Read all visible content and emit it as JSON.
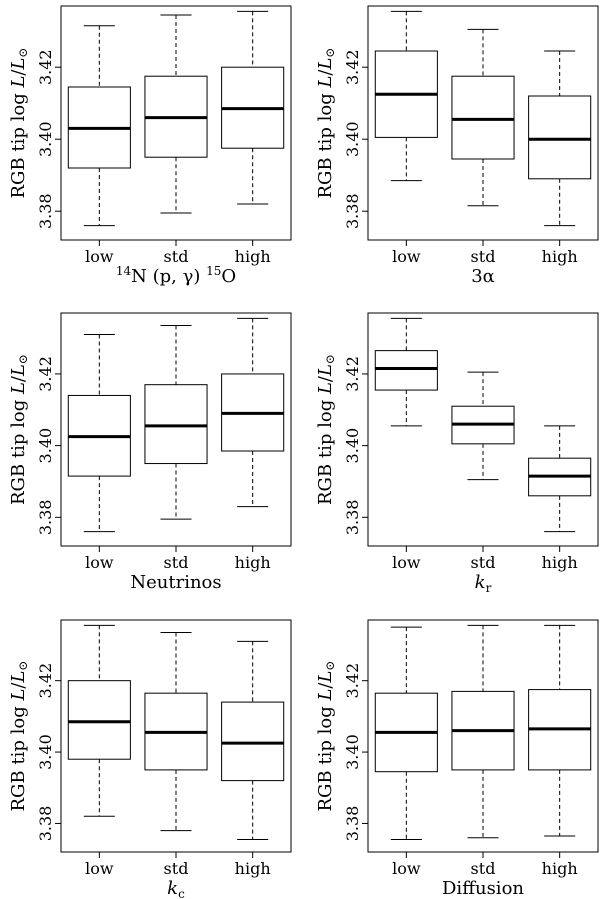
{
  "figure": {
    "y_axis_label": "RGB tip log L/L⊙",
    "y_axis_label_parts": {
      "main": "RGB tip log ",
      "var": "L",
      "sep": "/",
      "sunvar": "L",
      "sun": "⊙"
    }
  },
  "chart_data": [
    {
      "type": "box",
      "xlabel": "14N (p, γ) 15O",
      "xlabel_parts": {
        "sup1": "14",
        "a": "N (p, γ) ",
        "sup2": "15",
        "b": "O"
      },
      "categories": [
        "low",
        "std",
        "high"
      ],
      "ylim": [
        3.372,
        3.437
      ],
      "yticks": [
        "3.38",
        "3.40",
        "3.42"
      ],
      "boxes": [
        {
          "min": 3.376,
          "q1": 3.392,
          "median": 3.403,
          "q3": 3.4145,
          "max": 3.4315
        },
        {
          "min": 3.3795,
          "q1": 3.395,
          "median": 3.406,
          "q3": 3.4175,
          "max": 3.4345
        },
        {
          "min": 3.382,
          "q1": 3.3975,
          "median": 3.4085,
          "q3": 3.42,
          "max": 3.4355
        }
      ]
    },
    {
      "type": "box",
      "xlabel": "3α",
      "xlabel_parts": {
        "a": "3α"
      },
      "categories": [
        "low",
        "std",
        "high"
      ],
      "ylim": [
        3.372,
        3.437
      ],
      "yticks": [
        "3.38",
        "3.40",
        "3.42"
      ],
      "boxes": [
        {
          "min": 3.3885,
          "q1": 3.4005,
          "median": 3.4125,
          "q3": 3.4245,
          "max": 3.4355
        },
        {
          "min": 3.3815,
          "q1": 3.3945,
          "median": 3.4055,
          "q3": 3.4175,
          "max": 3.4305
        },
        {
          "min": 3.376,
          "q1": 3.389,
          "median": 3.4,
          "q3": 3.412,
          "max": 3.4245
        }
      ]
    },
    {
      "type": "box",
      "xlabel": "Neutrinos",
      "xlabel_parts": {
        "a": "Neutrinos"
      },
      "categories": [
        "low",
        "std",
        "high"
      ],
      "ylim": [
        3.372,
        3.437
      ],
      "yticks": [
        "3.38",
        "3.40",
        "3.42"
      ],
      "boxes": [
        {
          "min": 3.376,
          "q1": 3.3915,
          "median": 3.4025,
          "q3": 3.414,
          "max": 3.431
        },
        {
          "min": 3.3795,
          "q1": 3.395,
          "median": 3.4055,
          "q3": 3.417,
          "max": 3.4335
        },
        {
          "min": 3.383,
          "q1": 3.3985,
          "median": 3.409,
          "q3": 3.42,
          "max": 3.4355
        }
      ]
    },
    {
      "type": "box",
      "xlabel": "kr",
      "xlabel_parts": {
        "var": "k",
        "sub": "r"
      },
      "categories": [
        "low",
        "std",
        "high"
      ],
      "ylim": [
        3.372,
        3.437
      ],
      "yticks": [
        "3.38",
        "3.40",
        "3.42"
      ],
      "boxes": [
        {
          "min": 3.4055,
          "q1": 3.4155,
          "median": 3.4215,
          "q3": 3.4265,
          "max": 3.4355
        },
        {
          "min": 3.3905,
          "q1": 3.4005,
          "median": 3.406,
          "q3": 3.411,
          "max": 3.4205
        },
        {
          "min": 3.376,
          "q1": 3.386,
          "median": 3.3915,
          "q3": 3.3965,
          "max": 3.4055
        }
      ]
    },
    {
      "type": "box",
      "xlabel": "kc",
      "xlabel_parts": {
        "var": "k",
        "sub": "c"
      },
      "categories": [
        "low",
        "std",
        "high"
      ],
      "ylim": [
        3.372,
        3.437
      ],
      "yticks": [
        "3.38",
        "3.40",
        "3.42"
      ],
      "boxes": [
        {
          "min": 3.382,
          "q1": 3.398,
          "median": 3.4085,
          "q3": 3.42,
          "max": 3.4355
        },
        {
          "min": 3.378,
          "q1": 3.395,
          "median": 3.4055,
          "q3": 3.4165,
          "max": 3.4335
        },
        {
          "min": 3.3755,
          "q1": 3.392,
          "median": 3.4025,
          "q3": 3.414,
          "max": 3.431
        }
      ]
    },
    {
      "type": "box",
      "xlabel": "Diffusion",
      "xlabel_parts": {
        "a": "Diffusion"
      },
      "categories": [
        "low",
        "std",
        "high"
      ],
      "ylim": [
        3.372,
        3.437
      ],
      "yticks": [
        "3.38",
        "3.40",
        "3.42"
      ],
      "boxes": [
        {
          "min": 3.3755,
          "q1": 3.3945,
          "median": 3.4055,
          "q3": 3.4165,
          "max": 3.435
        },
        {
          "min": 3.376,
          "q1": 3.395,
          "median": 3.406,
          "q3": 3.417,
          "max": 3.4355
        },
        {
          "min": 3.3765,
          "q1": 3.395,
          "median": 3.4065,
          "q3": 3.4175,
          "max": 3.4355
        }
      ]
    }
  ]
}
